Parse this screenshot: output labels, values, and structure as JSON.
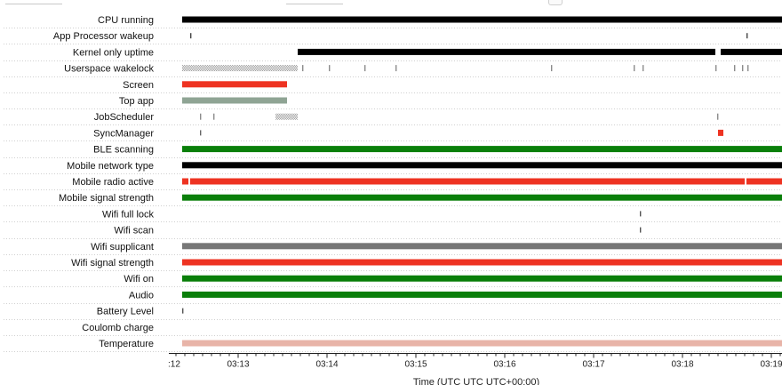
{
  "chart_data": {
    "type": "timeline",
    "xlabel": "Time (UTC UTC UTC+00:00)",
    "x_ticks": [
      ":12",
      "03:13",
      "03:14",
      "03:15",
      "03:16",
      "03:17",
      "03:18",
      "03:19"
    ],
    "x_range_min": [
      12.22,
      19.12
    ],
    "rows": [
      {
        "label": "CPU running",
        "color": "#000000",
        "pattern": "solid",
        "intervals": [
          [
            12.37,
            19.12
          ]
        ]
      },
      {
        "label": "App Processor wakeup",
        "color": "#444444",
        "pattern": "tick",
        "intervals": [
          [
            12.46,
            12.47
          ],
          [
            18.72,
            18.73
          ]
        ]
      },
      {
        "label": "Kernel only uptime",
        "color": "#000000",
        "pattern": "solid",
        "intervals": [
          [
            13.67,
            18.37
          ],
          [
            18.43,
            19.12
          ]
        ]
      },
      {
        "label": "Userspace wakelock",
        "color": "#999999",
        "pattern": "hatch",
        "intervals": [
          [
            12.37,
            13.67
          ],
          [
            13.72,
            13.73
          ],
          [
            14.02,
            14.03
          ],
          [
            14.42,
            14.43
          ],
          [
            14.77,
            14.78
          ],
          [
            16.52,
            16.53
          ],
          [
            17.45,
            17.47
          ],
          [
            17.55,
            17.56
          ],
          [
            18.37,
            18.43
          ],
          [
            18.58,
            18.59
          ],
          [
            18.67,
            18.68
          ],
          [
            18.73,
            18.74
          ]
        ]
      },
      {
        "label": "Screen",
        "color": "#ee3322",
        "pattern": "solid",
        "intervals": [
          [
            12.37,
            13.55
          ]
        ]
      },
      {
        "label": "Top app",
        "color": "#8fa494",
        "pattern": "solid",
        "intervals": [
          [
            12.37,
            13.55
          ]
        ]
      },
      {
        "label": "JobScheduler",
        "color": "#7f9a90",
        "pattern": "hatch",
        "intervals": [
          [
            12.57,
            12.58
          ],
          [
            12.72,
            12.73
          ],
          [
            13.42,
            13.67
          ],
          [
            18.39,
            18.44
          ]
        ]
      },
      {
        "label": "SyncManager",
        "color": "#ee3322",
        "pattern": "mixed",
        "intervals": [
          [
            12.57,
            12.58
          ],
          [
            18.4,
            18.46
          ]
        ]
      },
      {
        "label": "BLE scanning",
        "color": "#0a7f0a",
        "pattern": "solid",
        "intervals": [
          [
            12.37,
            19.12
          ]
        ]
      },
      {
        "label": "Mobile network type",
        "color": "#000000",
        "pattern": "solid",
        "intervals": [
          [
            12.37,
            19.12
          ]
        ]
      },
      {
        "label": "Mobile radio active",
        "color": "#ee3322",
        "pattern": "solid",
        "intervals": [
          [
            12.37,
            12.44
          ],
          [
            12.46,
            18.7
          ],
          [
            18.72,
            19.12
          ]
        ]
      },
      {
        "label": "Mobile signal strength",
        "color": "#0a7f0a",
        "pattern": "solid",
        "intervals": [
          [
            12.37,
            19.12
          ]
        ]
      },
      {
        "label": "Wifi full lock",
        "color": "#555555",
        "pattern": "tick",
        "intervals": [
          [
            17.52,
            17.53
          ]
        ]
      },
      {
        "label": "Wifi scan",
        "color": "#555555",
        "pattern": "tick",
        "intervals": [
          [
            17.52,
            17.53
          ]
        ]
      },
      {
        "label": "Wifi supplicant",
        "color": "#777777",
        "pattern": "solid",
        "intervals": [
          [
            12.37,
            19.12
          ]
        ]
      },
      {
        "label": "Wifi signal strength",
        "color": "#ee3322",
        "pattern": "solid",
        "intervals": [
          [
            12.37,
            19.12
          ]
        ]
      },
      {
        "label": "Wifi on",
        "color": "#0a7f0a",
        "pattern": "solid",
        "intervals": [
          [
            12.37,
            19.12
          ]
        ]
      },
      {
        "label": "Audio",
        "color": "#0a7f0a",
        "pattern": "solid",
        "intervals": [
          [
            12.37,
            19.12
          ]
        ]
      },
      {
        "label": "Battery Level",
        "color": "#555555",
        "pattern": "tick",
        "intervals": [
          [
            12.37,
            12.38
          ]
        ]
      },
      {
        "label": "Coulomb charge",
        "color": "#555555",
        "pattern": "solid",
        "intervals": []
      },
      {
        "label": "Temperature",
        "color": "#e8b4a8",
        "pattern": "solid",
        "intervals": [
          [
            12.37,
            19.12
          ]
        ]
      }
    ],
    "grid": true,
    "legend": "none"
  }
}
